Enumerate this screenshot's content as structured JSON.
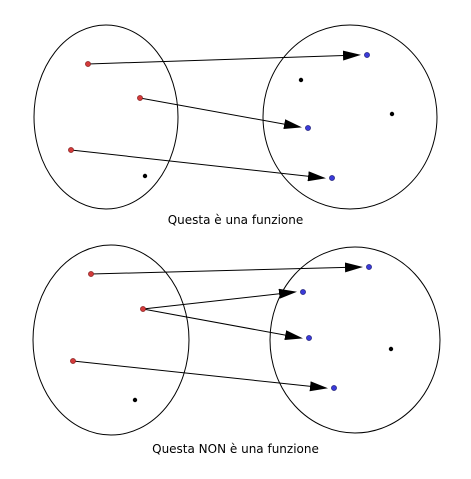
{
  "captions": {
    "top": "Questa è una funzione",
    "bottom": "Questa NON è una funzione"
  },
  "colors": {
    "domain_point": "#d33a3a",
    "codomain_point": "#3a3ad8",
    "unmapped_point": "#000000",
    "stroke": "#000000"
  }
}
